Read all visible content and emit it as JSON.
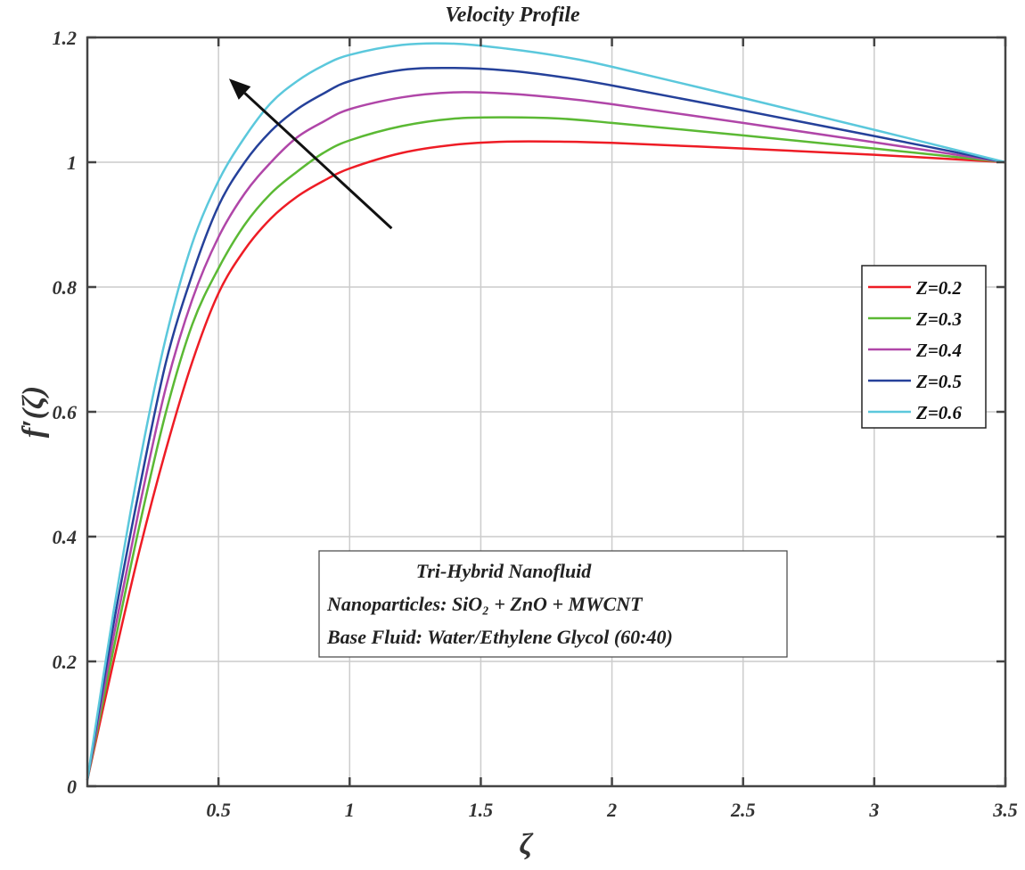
{
  "chart_data": {
    "type": "line",
    "title": "Velocity Profile",
    "xlabel": "ζ",
    "ylabel": "f′(ζ)",
    "xlim": [
      0,
      3.5
    ],
    "ylim": [
      0,
      1.2
    ],
    "grid": true,
    "xticks": [
      {
        "v": 0.5,
        "label": "0.5"
      },
      {
        "v": 1,
        "label": "1"
      },
      {
        "v": 1.5,
        "label": "1.5"
      },
      {
        "v": 2,
        "label": "2"
      },
      {
        "v": 2.5,
        "label": "2.5"
      },
      {
        "v": 3,
        "label": "3"
      },
      {
        "v": 3.5,
        "label": "3.5"
      }
    ],
    "yticks": [
      {
        "v": 0,
        "label": "0"
      },
      {
        "v": 0.2,
        "label": "0.2"
      },
      {
        "v": 0.4,
        "label": "0.4"
      },
      {
        "v": 0.6,
        "label": "0.6"
      },
      {
        "v": 0.8,
        "label": "0.8"
      },
      {
        "v": 1,
        "label": "1"
      },
      {
        "v": 1.2,
        "label": "1.2"
      }
    ],
    "x": [
      0,
      0.1,
      0.2,
      0.3,
      0.4,
      0.5,
      0.6,
      0.7,
      0.8,
      0.9,
      1.0,
      1.2,
      1.4,
      1.6,
      1.8,
      2.0,
      2.5,
      3.0,
      3.5
    ],
    "series": [
      {
        "name": "Z=0.2",
        "color": "#ee1c25",
        "values": [
          0.01,
          0.2,
          0.38,
          0.54,
          0.68,
          0.79,
          0.86,
          0.91,
          0.945,
          0.97,
          0.99,
          1.015,
          1.028,
          1.033,
          1.033,
          1.031,
          1.022,
          1.012,
          1.0
        ]
      },
      {
        "name": "Z=0.3",
        "color": "#5bb934",
        "values": [
          0.01,
          0.22,
          0.42,
          0.6,
          0.74,
          0.83,
          0.9,
          0.95,
          0.985,
          1.015,
          1.035,
          1.058,
          1.07,
          1.072,
          1.07,
          1.063,
          1.043,
          1.022,
          1.0
        ]
      },
      {
        "name": "Z=0.4",
        "color": "#b046a8",
        "values": [
          0.01,
          0.24,
          0.45,
          0.64,
          0.78,
          0.88,
          0.95,
          1.0,
          1.04,
          1.065,
          1.085,
          1.104,
          1.112,
          1.11,
          1.103,
          1.093,
          1.063,
          1.032,
          1.0
        ]
      },
      {
        "name": "Z=0.5",
        "color": "#25419a",
        "values": [
          0.01,
          0.26,
          0.48,
          0.68,
          0.82,
          0.93,
          1.0,
          1.05,
          1.085,
          1.11,
          1.13,
          1.148,
          1.151,
          1.147,
          1.137,
          1.123,
          1.083,
          1.042,
          1.0
        ]
      },
      {
        "name": "Z=0.6",
        "color": "#5bc8dc",
        "values": [
          0.01,
          0.28,
          0.52,
          0.72,
          0.87,
          0.97,
          1.04,
          1.095,
          1.13,
          1.155,
          1.172,
          1.188,
          1.19,
          1.182,
          1.17,
          1.153,
          1.103,
          1.052,
          1.0
        ]
      }
    ],
    "legend_position": "right",
    "arrow": {
      "from": [
        1.16,
        0.894
      ],
      "to": [
        0.54,
        1.134
      ],
      "meaning": "increasing Z"
    },
    "annotation": {
      "line1": "Tri-Hybrid Nanofluid",
      "line2": "Nanoparticles:  SiO₂ + ZnO + MWCNT",
      "line3": "Base Fluid: Water/Ethylene Glycol (60:40)"
    }
  }
}
